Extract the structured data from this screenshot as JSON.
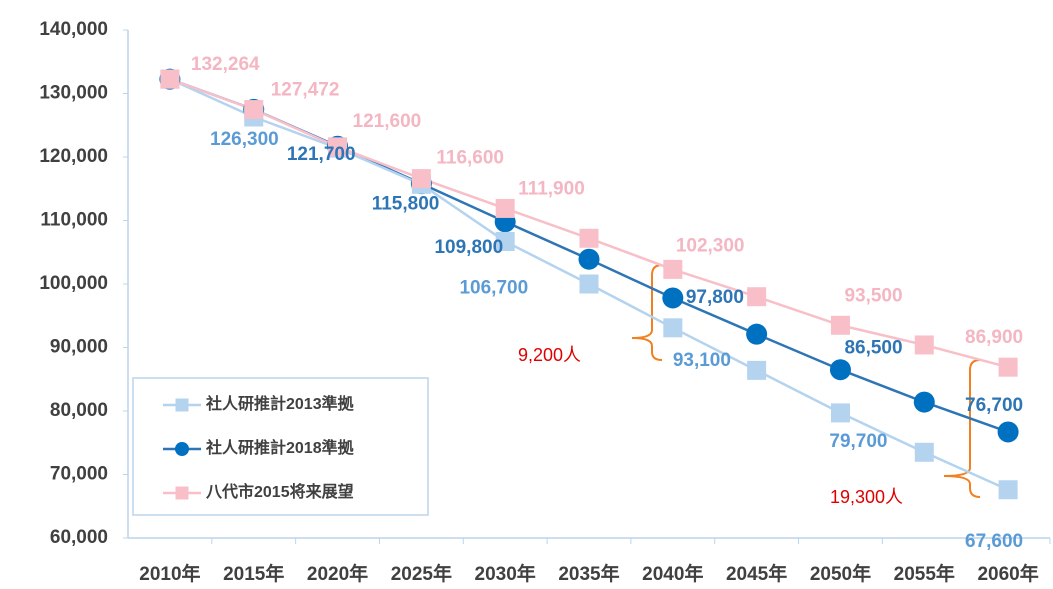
{
  "chart_data": {
    "type": "line",
    "categories": [
      "2010年",
      "2015年",
      "2020年",
      "2025年",
      "2030年",
      "2035年",
      "2040年",
      "2045年",
      "2050年",
      "2055年",
      "2060年"
    ],
    "series": [
      {
        "name": "社人研推計2013準拠",
        "color": "#b4d3ee",
        "marker": "square",
        "values": [
          132264,
          126300,
          121400,
          115700,
          106700,
          100000,
          93100,
          86400,
          79700,
          73500,
          67600
        ],
        "value_labels": [
          null,
          "126,300",
          null,
          null,
          "106,700",
          null,
          "93,100",
          null,
          "79,700",
          null,
          "67,600"
        ]
      },
      {
        "name": "社人研推計2018準拠",
        "color": "#0070c0",
        "marker": "circle",
        "values": [
          132264,
          127500,
          121700,
          115800,
          109800,
          103900,
          97800,
          92100,
          86500,
          81400,
          76700
        ],
        "value_labels": [
          null,
          null,
          "121,700",
          "115,800",
          "109,800",
          null,
          "97,800",
          null,
          "86,500",
          null,
          "76,700"
        ]
      },
      {
        "name": "八代市2015将来展望",
        "color": "#f8bfc9",
        "marker": "square",
        "values": [
          132264,
          127472,
          121600,
          116600,
          111900,
          107200,
          102300,
          98000,
          93500,
          90400,
          86900
        ],
        "value_labels": [
          "132,264",
          "127,472",
          "121,600",
          "116,600",
          "111,900",
          null,
          "102,300",
          null,
          "93,500",
          null,
          "86,900"
        ]
      }
    ],
    "ylim": [
      60000,
      140000
    ],
    "yticks": [
      {
        "value": 60000,
        "label": "60,000"
      },
      {
        "value": 70000,
        "label": "70,000"
      },
      {
        "value": 80000,
        "label": "80,000"
      },
      {
        "value": 90000,
        "label": "90,000"
      },
      {
        "value": 100000,
        "label": "100,000"
      },
      {
        "value": 110000,
        "label": "110,000"
      },
      {
        "value": 120000,
        "label": "120,000"
      },
      {
        "value": 130000,
        "label": "130,000"
      },
      {
        "value": 140000,
        "label": "140,000"
      }
    ],
    "grid": false,
    "legend": "bottom-left",
    "annotations": [
      "9,200人",
      "19,300人"
    ]
  }
}
